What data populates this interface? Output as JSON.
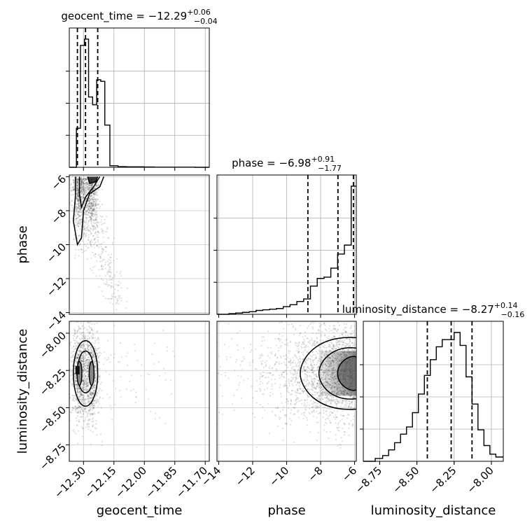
{
  "chart_data": {
    "type": "corner",
    "parameters": [
      {
        "name": "geocent_time",
        "axis_label": "geocent_time",
        "title": {
          "prefix": "geocent_time = −12.29",
          "sup": "+0.06",
          "sub": "−0.04"
        },
        "range": [
          -12.37,
          -11.68
        ],
        "ticks": [
          -12.3,
          -12.15,
          -12.0,
          -11.85,
          -11.7
        ],
        "tick_labels": [
          "−12.30",
          "−12.15",
          "−12.00",
          "−11.85",
          "−11.70"
        ],
        "quantiles": [
          -12.33,
          -12.29,
          -12.23
        ],
        "hist_edges": [
          -12.37,
          -12.335,
          -12.315,
          -12.295,
          -12.275,
          -12.255,
          -12.235,
          -12.215,
          -12.195,
          -12.17,
          -12.13,
          -12.09,
          -12.05,
          -12.0,
          -11.95,
          -11.9,
          -11.85,
          -11.8,
          -11.75,
          -11.7,
          -11.68
        ],
        "hist_density": [
          0.0,
          0.25,
          0.78,
          0.82,
          0.45,
          0.4,
          0.56,
          0.55,
          0.27,
          0.01,
          0.004,
          0.003,
          0.003,
          0.002,
          0.001,
          0.001,
          0.001,
          0.001,
          0.0,
          0.0
        ]
      },
      {
        "name": "phase",
        "axis_label": "phase",
        "title": {
          "prefix": "phase = −6.98",
          "sup": "+0.91",
          "sub": "−1.77"
        },
        "range": [
          -14.1,
          -5.9
        ],
        "ticks": [
          -14,
          -12,
          -10,
          -8,
          -6
        ],
        "tick_labels": [
          "−14",
          "−12",
          "−10",
          "−8",
          "−6"
        ],
        "quantiles": [
          -8.75,
          -6.98,
          -6.07
        ],
        "hist_edges": [
          -14.1,
          -13.4,
          -13.0,
          -12.6,
          -12.2,
          -11.8,
          -11.4,
          -11.0,
          -10.6,
          -10.2,
          -9.8,
          -9.4,
          -9.0,
          -8.6,
          -8.2,
          -7.8,
          -7.4,
          -7.0,
          -6.6,
          -6.2,
          -5.9
        ],
        "hist_density": [
          0.0,
          0.005,
          0.01,
          0.015,
          0.02,
          0.03,
          0.035,
          0.04,
          0.045,
          0.06,
          0.075,
          0.1,
          0.12,
          0.22,
          0.28,
          0.29,
          0.36,
          0.47,
          0.54,
          1.0
        ]
      },
      {
        "name": "luminosity_distance",
        "axis_label": "luminosity_distance",
        "title": {
          "prefix": "luminosity_distance = −8.27",
          "sup": "+0.14",
          "sub": "−0.16"
        },
        "range": [
          -8.86,
          -7.92
        ],
        "ticks": [
          -8.75,
          -8.5,
          -8.25,
          -8.0
        ],
        "tick_labels": [
          "−8.75",
          "−8.50",
          "−8.25",
          "−8.00"
        ],
        "quantiles": [
          -8.43,
          -8.27,
          -8.13
        ],
        "hist_edges": [
          -8.86,
          -8.78,
          -8.73,
          -8.69,
          -8.65,
          -8.61,
          -8.57,
          -8.53,
          -8.49,
          -8.45,
          -8.41,
          -8.37,
          -8.33,
          -8.29,
          -8.25,
          -8.21,
          -8.17,
          -8.13,
          -8.09,
          -8.05,
          -8.01,
          -7.97,
          -7.92
        ],
        "hist_density": [
          0.0,
          0.02,
          0.04,
          0.08,
          0.13,
          0.19,
          0.24,
          0.34,
          0.47,
          0.6,
          0.71,
          0.8,
          0.85,
          0.85,
          0.9,
          0.81,
          0.59,
          0.4,
          0.22,
          0.11,
          0.05,
          0.03
        ]
      }
    ]
  }
}
